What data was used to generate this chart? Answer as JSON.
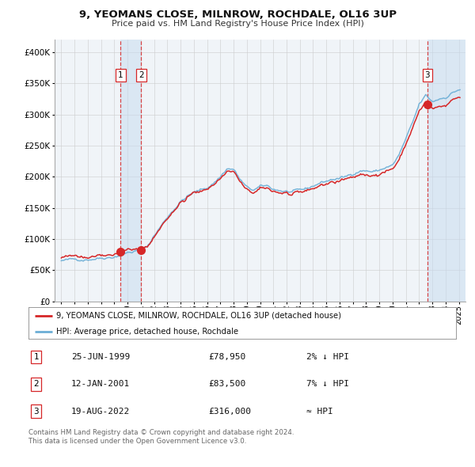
{
  "title": "9, YEOMANS CLOSE, MILNROW, ROCHDALE, OL16 3UP",
  "subtitle": "Price paid vs. HM Land Registry's House Price Index (HPI)",
  "legend_line1": "9, YEOMANS CLOSE, MILNROW, ROCHDALE, OL16 3UP (detached house)",
  "legend_line2": "HPI: Average price, detached house, Rochdale",
  "transactions": [
    {
      "num": 1,
      "date": "25-JUN-1999",
      "price": 78950,
      "pct": "2%",
      "dir": "↓",
      "year": 1999.48
    },
    {
      "num": 2,
      "date": "12-JAN-2001",
      "price": 83500,
      "pct": "7%",
      "dir": "↓",
      "year": 2001.04
    },
    {
      "num": 3,
      "date": "19-AUG-2022",
      "price": 316000,
      "pct": "≈",
      "dir": "",
      "year": 2022.63
    }
  ],
  "footer1": "Contains HM Land Registry data © Crown copyright and database right 2024.",
  "footer2": "This data is licensed under the Open Government Licence v3.0.",
  "hpi_color": "#6baed6",
  "price_color": "#d62728",
  "marker_color": "#d62728",
  "vline_color": "#d62728",
  "shade_color": "#c6dbef",
  "grid_color": "#cccccc",
  "bg_color": "#ffffff",
  "plot_bg_color": "#f0f4f8",
  "ylim": [
    0,
    420000
  ],
  "yticks": [
    0,
    50000,
    100000,
    150000,
    200000,
    250000,
    300000,
    350000,
    400000
  ],
  "xlim_start": 1994.5,
  "xlim_end": 2025.5,
  "hpi_ctrl_x": [
    1995.0,
    1996.0,
    1997.0,
    1998.0,
    1999.0,
    1999.5,
    2000.0,
    2001.0,
    2001.5,
    2002.0,
    2002.5,
    2003.0,
    2003.5,
    2004.0,
    2004.5,
    2005.0,
    2005.5,
    2006.0,
    2006.5,
    2007.0,
    2007.5,
    2008.0,
    2008.5,
    2009.0,
    2009.5,
    2010.0,
    2010.5,
    2011.0,
    2011.5,
    2012.0,
    2012.5,
    2013.0,
    2013.5,
    2014.0,
    2014.5,
    2015.0,
    2015.5,
    2016.0,
    2016.5,
    2017.0,
    2017.5,
    2018.0,
    2018.5,
    2019.0,
    2019.5,
    2020.0,
    2020.5,
    2021.0,
    2021.5,
    2022.0,
    2022.5,
    2023.0,
    2023.5,
    2024.0,
    2024.5,
    2025.0
  ],
  "hpi_ctrl_y": [
    65000,
    67000,
    68000,
    70000,
    72000,
    75000,
    78000,
    82000,
    88000,
    105000,
    120000,
    135000,
    148000,
    160000,
    168000,
    174000,
    178000,
    182000,
    190000,
    200000,
    213000,
    212000,
    195000,
    182000,
    178000,
    183000,
    185000,
    180000,
    178000,
    176000,
    175000,
    177000,
    180000,
    185000,
    190000,
    193000,
    196000,
    197000,
    200000,
    205000,
    210000,
    210000,
    208000,
    210000,
    215000,
    218000,
    235000,
    260000,
    285000,
    315000,
    330000,
    320000,
    325000,
    328000,
    335000,
    340000
  ]
}
